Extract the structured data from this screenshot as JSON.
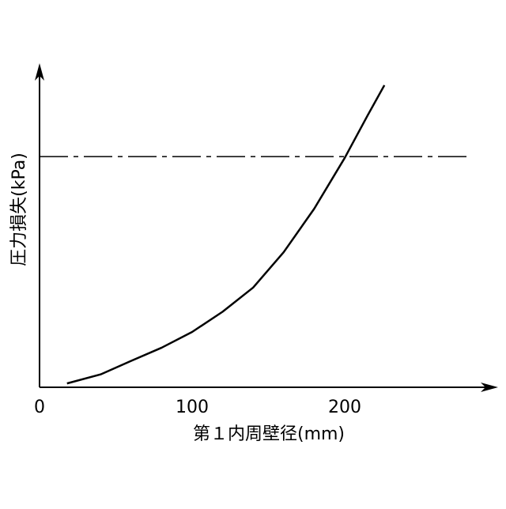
{
  "chart_data": {
    "type": "line",
    "x_label": "第１内周壁径(mm)",
    "y_label": "圧力損失(kPa)",
    "x": [
      18,
      40,
      60,
      80,
      100,
      120,
      140,
      160,
      180,
      200,
      215,
      226
    ],
    "series": [
      {
        "color": "#000000",
        "values": [
          1.2,
          4,
          8.2,
          12.3,
          17.2,
          23.5,
          31,
          42,
          55.5,
          71.3,
          84.5,
          93.9
        ]
      }
    ],
    "reference_line": {
      "value": 71.7,
      "x": [
        0,
        280
      ],
      "style": "dash-dot",
      "color": "#000000"
    },
    "xlim": [
      0,
      300
    ],
    "ylim": [
      0,
      100
    ],
    "xticks": [
      0,
      100,
      200
    ]
  }
}
